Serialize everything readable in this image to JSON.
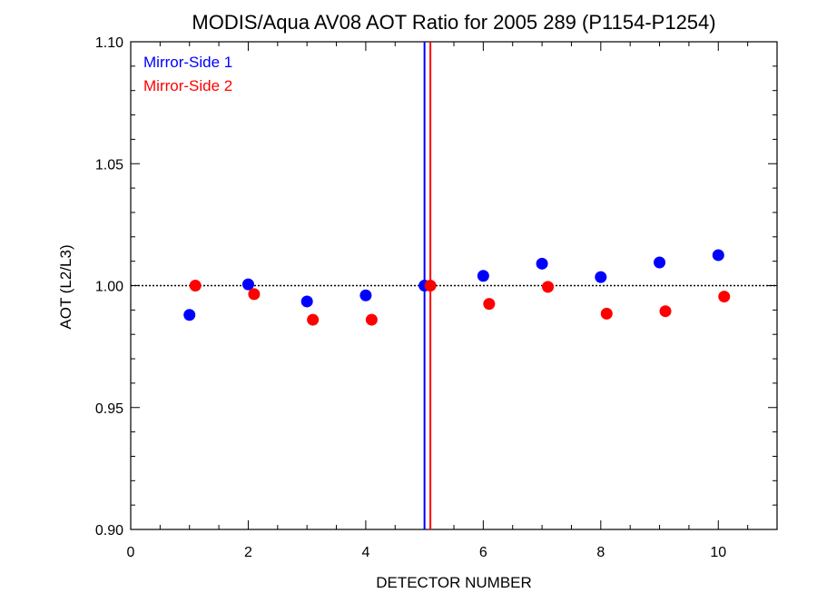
{
  "chart_data": {
    "type": "scatter",
    "title": "MODIS/Aqua AV08 AOT Ratio for 2005 289 (P1154-P1254)",
    "xlabel": "DETECTOR NUMBER",
    "ylabel": "AOT (L2/L3)",
    "xlim": [
      0,
      11
    ],
    "ylim": [
      0.9,
      1.1
    ],
    "x_ticks": [
      0,
      2,
      4,
      6,
      8,
      10
    ],
    "x_tick_labels": [
      "0",
      "2",
      "4",
      "6",
      "8",
      "10"
    ],
    "x_minor_step": 0.5,
    "y_ticks": [
      0.9,
      0.95,
      1.0,
      1.05,
      1.1
    ],
    "y_tick_labels": [
      "0.90",
      "0.95",
      "1.00",
      "1.05",
      "1.10"
    ],
    "y_minor_step": 0.01,
    "reference_line": {
      "y": 1.0,
      "style": "dotted",
      "color": "#000000"
    },
    "vertical_lines": [
      {
        "x": 5.0,
        "color": "#0000ff"
      },
      {
        "x": 5.1,
        "color": "#ff0000"
      }
    ],
    "legend": {
      "position": "top-left"
    },
    "grid": false,
    "series": [
      {
        "name": "Mirror-Side 1",
        "color": "#0000ff",
        "x": [
          1,
          2,
          3,
          4,
          5,
          6,
          7,
          8,
          9,
          10
        ],
        "y": [
          0.988,
          1.0005,
          0.9935,
          0.996,
          1.0,
          1.004,
          1.009,
          1.0035,
          1.0095,
          1.0125
        ]
      },
      {
        "name": "Mirror-Side 2",
        "color": "#ff0000",
        "x": [
          1.1,
          2.1,
          3.1,
          4.1,
          5.1,
          6.1,
          7.1,
          8.1,
          9.1,
          10.1
        ],
        "y": [
          1.0,
          0.9965,
          0.986,
          0.986,
          1.0,
          0.9925,
          0.9995,
          0.9885,
          0.9895,
          0.9955
        ]
      }
    ]
  }
}
